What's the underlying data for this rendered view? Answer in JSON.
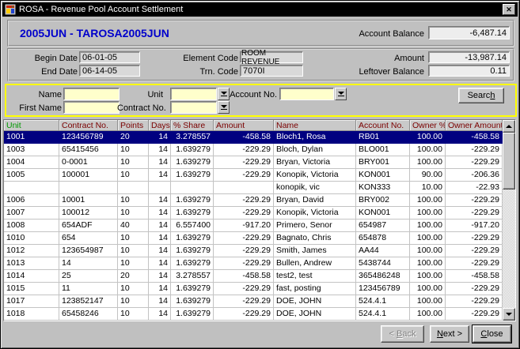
{
  "window": {
    "title": "ROSA - Revenue Pool Account Settlement",
    "close_glyph": "✕"
  },
  "header": {
    "pool_title": "2005JUN - TAROSA2005JUN",
    "account_balance_label": "Account Balance",
    "account_balance_value": "-6,487.14"
  },
  "details": {
    "begin_date_label": "Begin Date",
    "begin_date_value": "06-01-05",
    "end_date_label": "End Date",
    "end_date_value": "06-14-05",
    "element_code_label": "Element Code",
    "element_code_value": "ROOM REVENUE",
    "trn_code_label": "Trn. Code",
    "trn_code_value": "7070I",
    "amount_label": "Amount",
    "amount_value": "-13,987.14",
    "leftover_label": "Leftover Balance",
    "leftover_value": "0.11"
  },
  "search": {
    "name_label": "Name",
    "name_value": "",
    "first_name_label": "First Name",
    "first_name_value": "",
    "unit_label": "Unit",
    "unit_value": "",
    "contract_label": "Contract No.",
    "contract_value": "",
    "account_label": "Account No.",
    "account_value": "",
    "button": {
      "pre": "Searc",
      "key": "h",
      "post": ""
    }
  },
  "table": {
    "columns": [
      "Unit",
      "Contract No.",
      "Points",
      "Days",
      "% Share",
      "Amount",
      "Name",
      "Account No.",
      "Owner %",
      "Owner Amount"
    ],
    "selected_row_index": 0,
    "rows": [
      [
        "1001",
        "123456789",
        "20",
        "14",
        "3.278557",
        "-458.58",
        "Bloch1, Rosa",
        "RB01",
        "100.00",
        "-458.58"
      ],
      [
        "1003",
        "65415456",
        "10",
        "14",
        "1.639279",
        "-229.29",
        "Bloch, Dylan",
        "BLO001",
        "100.00",
        "-229.29"
      ],
      [
        "1004",
        "0-0001",
        "10",
        "14",
        "1.639279",
        "-229.29",
        "Bryan, Victoria",
        "BRY001",
        "100.00",
        "-229.29"
      ],
      [
        "1005",
        "100001",
        "10",
        "14",
        "1.639279",
        "-229.29",
        "Konopik, Victoria",
        "KON001",
        "90.00",
        "-206.36"
      ],
      [
        "",
        "",
        "",
        "",
        "",
        "",
        "konopik, vic",
        "KON333",
        "10.00",
        "-22.93"
      ],
      [
        "1006",
        "10001",
        "10",
        "14",
        "1.639279",
        "-229.29",
        "Bryan, David",
        "BRY002",
        "100.00",
        "-229.29"
      ],
      [
        "1007",
        "100012",
        "10",
        "14",
        "1.639279",
        "-229.29",
        "Konopik, Victoria",
        "KON001",
        "100.00",
        "-229.29"
      ],
      [
        "1008",
        "654ADF",
        "40",
        "14",
        "6.557400",
        "-917.20",
        "Primero, Senor",
        "654987",
        "100.00",
        "-917.20"
      ],
      [
        "1010",
        "654",
        "10",
        "14",
        "1.639279",
        "-229.29",
        "Bagnato, Chris",
        "654878",
        "100.00",
        "-229.29"
      ],
      [
        "1012",
        "123654987",
        "10",
        "14",
        "1.639279",
        "-229.29",
        "Smith, James",
        "AA44",
        "100.00",
        "-229.29"
      ],
      [
        "1013",
        "14",
        "10",
        "14",
        "1.639279",
        "-229.29",
        "Bullen, Andrew",
        "5438744",
        "100.00",
        "-229.29"
      ],
      [
        "1014",
        "25",
        "20",
        "14",
        "3.278557",
        "-458.58",
        "test2, test",
        "365486248",
        "100.00",
        "-458.58"
      ],
      [
        "1015",
        "11",
        "10",
        "14",
        "1.639279",
        "-229.29",
        "fast, posting",
        "123456789",
        "100.00",
        "-229.29"
      ],
      [
        "1017",
        "123852147",
        "10",
        "14",
        "1.639279",
        "-229.29",
        "DOE, JOHN",
        "524.4.1",
        "100.00",
        "-229.29"
      ],
      [
        "1018",
        "65458246",
        "10",
        "14",
        "1.639279",
        "-229.29",
        "DOE, JOHN",
        "524.4.1",
        "100.00",
        "-229.29"
      ]
    ]
  },
  "footer": {
    "back": {
      "pre": "< ",
      "key": "B",
      "post": "ack"
    },
    "next": {
      "pre": "",
      "key": "N",
      "post": "ext >"
    },
    "close": {
      "pre": "",
      "key": "C",
      "post": "lose"
    }
  },
  "colors": {
    "selected_row_bg": "#000080",
    "header_unit_green": "#009900",
    "header_maroon": "#7b0000",
    "search_panel_border": "#ffff00",
    "search_field_bg": "#ffffcc",
    "pool_title_blue": "#0000cc",
    "titlebar_bg": "#000000"
  }
}
